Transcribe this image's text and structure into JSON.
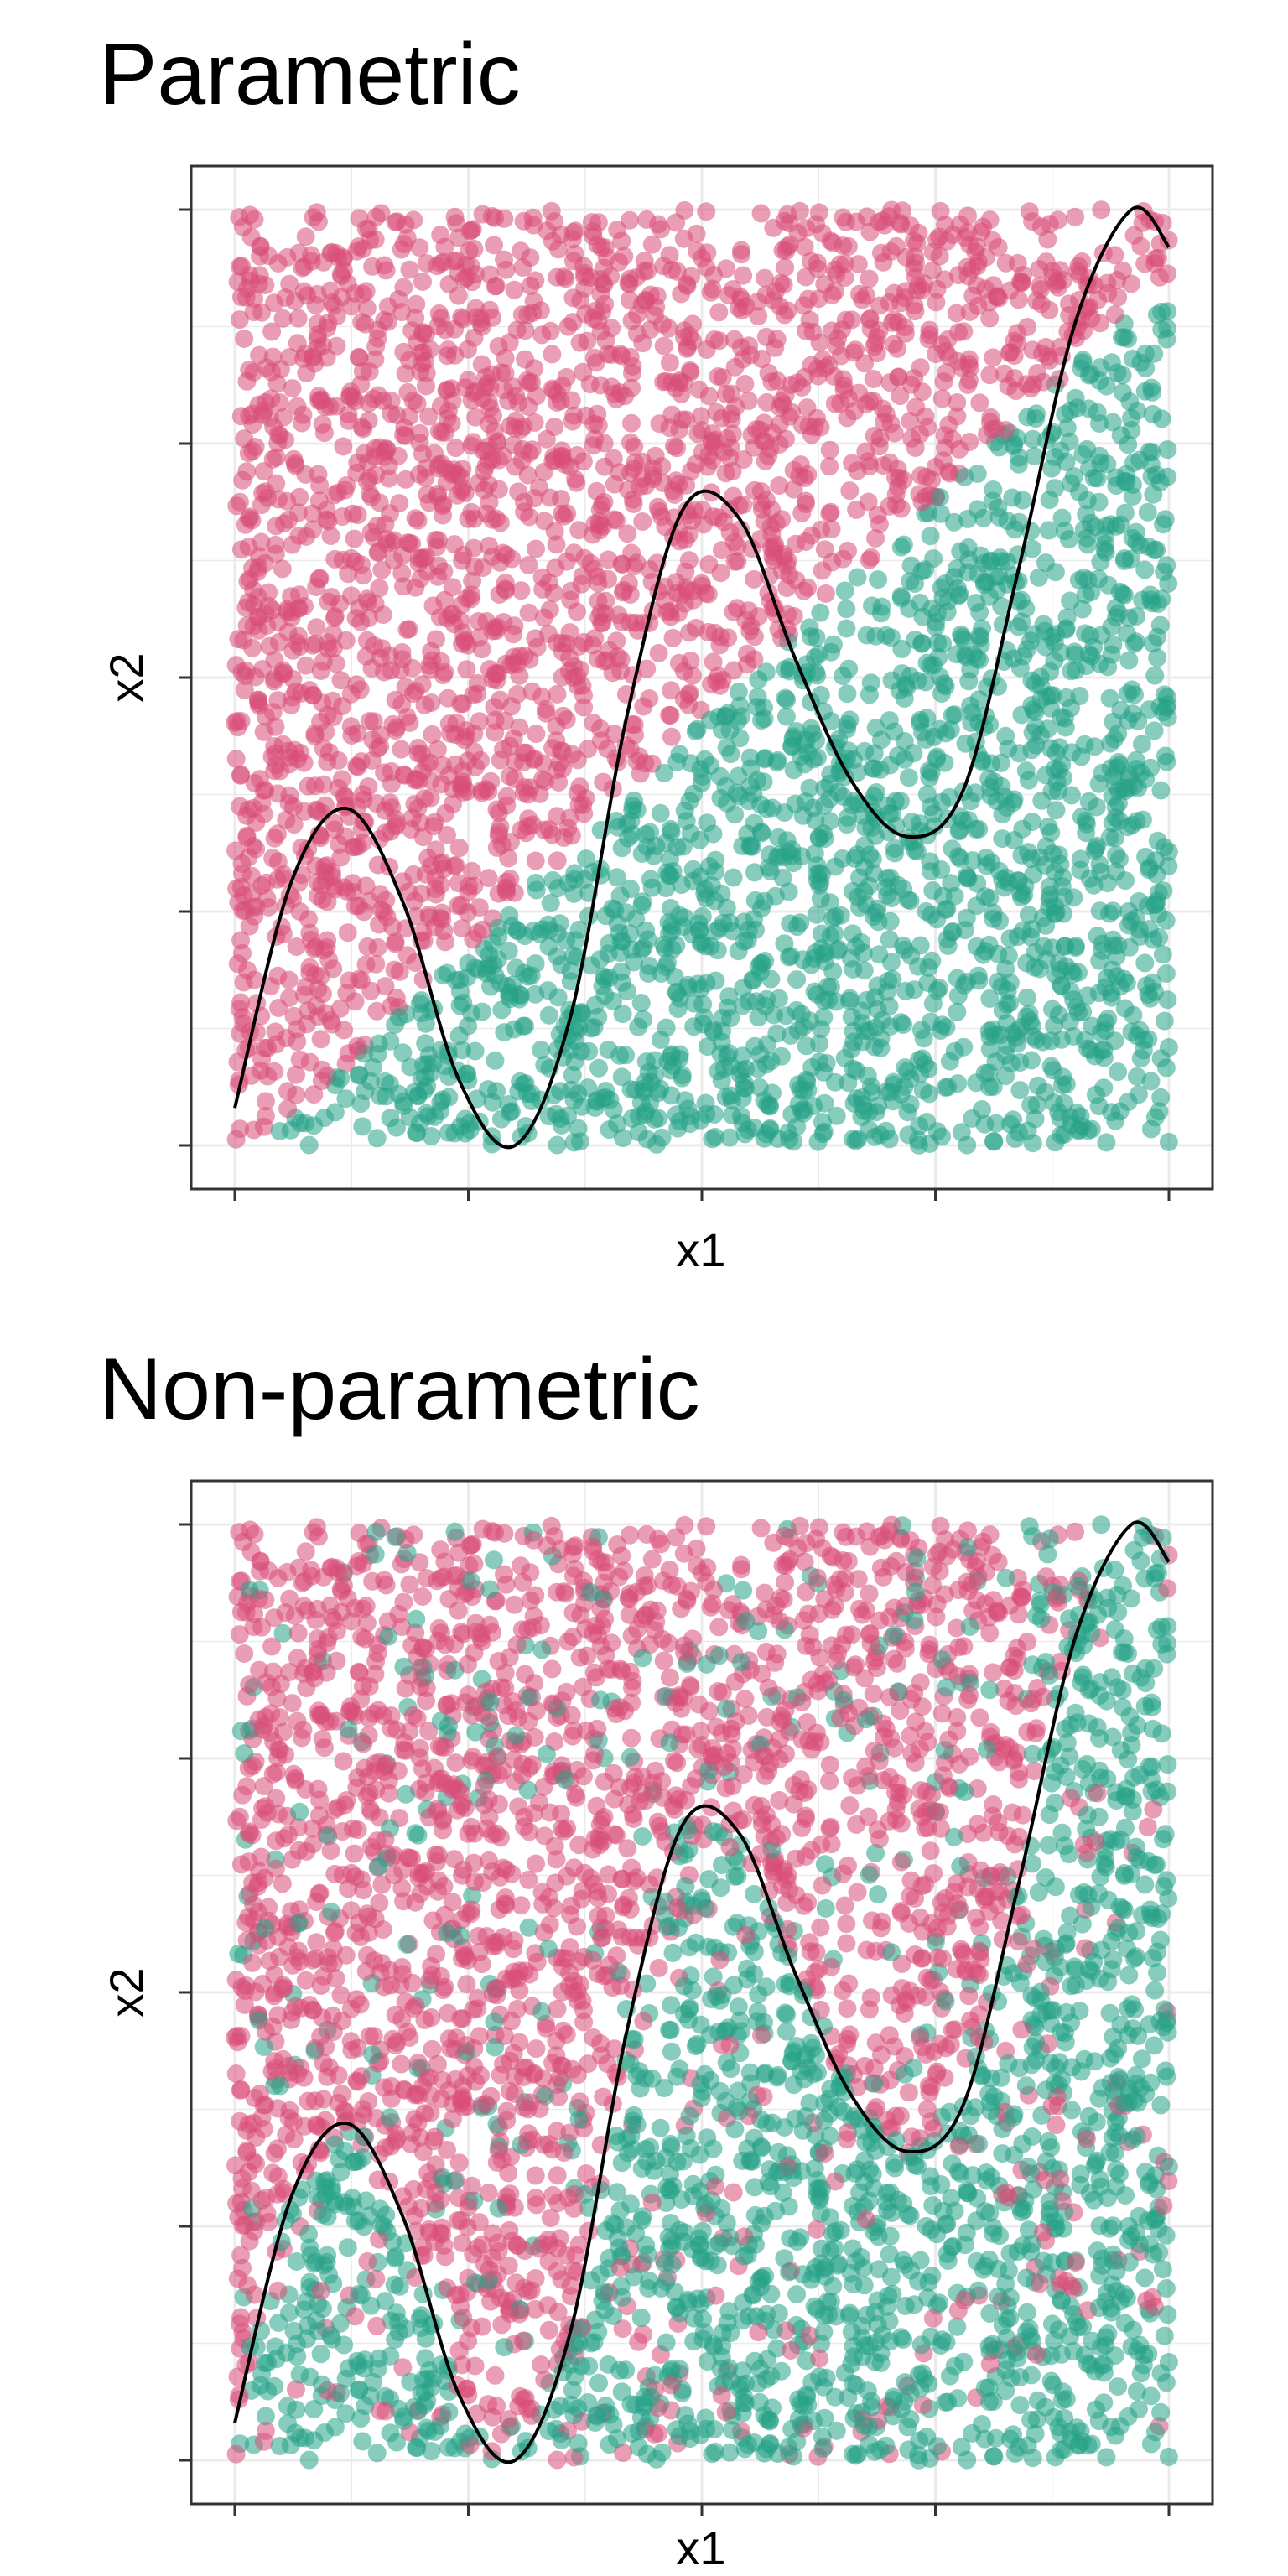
{
  "chart_data": [
    {
      "type": "scatter",
      "title": "Parametric",
      "xlabel": "x1",
      "ylabel": "x2",
      "xlim": [
        0,
        1
      ],
      "ylim": [
        0,
        1
      ],
      "grid": true,
      "legend": "none",
      "tick_labels_shown": false,
      "classifier": "linear",
      "point_count": 4000,
      "series": [
        {
          "name": "",
          "color": "#D94E79",
          "region": "above the line x2 = x1 (anchored at x1≈0.03, x2=0 and x1=1, x2≈0.93)"
        },
        {
          "name": "",
          "color": "#26A386",
          "region": "below the line x2 = x1"
        }
      ],
      "curve": {
        "color": "#000000",
        "points": [
          [
            0.0,
            0.04
          ],
          [
            0.06,
            0.28
          ],
          [
            0.12,
            0.36
          ],
          [
            0.18,
            0.26
          ],
          [
            0.24,
            0.07
          ],
          [
            0.3,
            0.0
          ],
          [
            0.36,
            0.14
          ],
          [
            0.42,
            0.46
          ],
          [
            0.48,
            0.68
          ],
          [
            0.54,
            0.67
          ],
          [
            0.6,
            0.52
          ],
          [
            0.66,
            0.39
          ],
          [
            0.72,
            0.33
          ],
          [
            0.78,
            0.38
          ],
          [
            0.84,
            0.62
          ],
          [
            0.9,
            0.88
          ],
          [
            0.96,
            1.0
          ],
          [
            1.0,
            0.96
          ]
        ]
      }
    },
    {
      "type": "scatter",
      "title": "Non-parametric",
      "xlabel": "x1",
      "ylabel": "x2",
      "xlim": [
        0,
        1
      ],
      "ylim": [
        0,
        1
      ],
      "grid": true,
      "legend": "none",
      "tick_labels_shown": false,
      "classifier": "non-parametric",
      "point_count": 4000,
      "series": [
        {
          "name": "",
          "color": "#D94E79",
          "region": "roughly above the curve"
        },
        {
          "name": "",
          "color": "#26A386",
          "region": "roughly below the curve, with scattered noise"
        }
      ],
      "curve": {
        "color": "#000000",
        "points": [
          [
            0.0,
            0.04
          ],
          [
            0.06,
            0.28
          ],
          [
            0.12,
            0.36
          ],
          [
            0.18,
            0.26
          ],
          [
            0.24,
            0.07
          ],
          [
            0.3,
            0.0
          ],
          [
            0.36,
            0.14
          ],
          [
            0.42,
            0.46
          ],
          [
            0.48,
            0.68
          ],
          [
            0.54,
            0.67
          ],
          [
            0.6,
            0.52
          ],
          [
            0.66,
            0.39
          ],
          [
            0.72,
            0.33
          ],
          [
            0.78,
            0.38
          ],
          [
            0.84,
            0.62
          ],
          [
            0.9,
            0.88
          ],
          [
            0.96,
            1.0
          ],
          [
            1.0,
            0.96
          ]
        ]
      }
    }
  ]
}
